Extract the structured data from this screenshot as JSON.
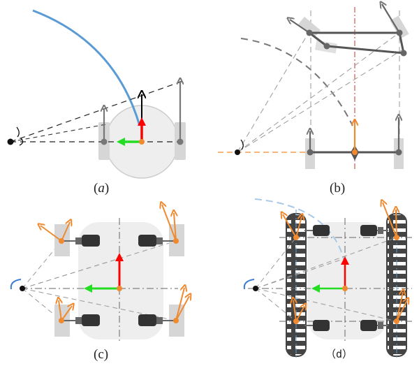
{
  "panels": [
    {
      "id": "a",
      "caption": "(a)",
      "italic_letter": "a"
    },
    {
      "id": "b",
      "caption": "(b)"
    },
    {
      "id": "c",
      "caption": "(c)"
    },
    {
      "id": "d",
      "caption": "（d）"
    }
  ],
  "colors": {
    "trajectory": "#5b9bd5",
    "velocity_arrow": "#ff0000",
    "lateral_arrow": "#22dd22",
    "wheel_arrow": "#f08a30",
    "wheel_body": "#d8d8d8",
    "chassis": "#eeeeee",
    "motor": "#333333",
    "track": "#444444",
    "guide_line": "#666666",
    "centerline_b": "#c0392b",
    "dashed_orange": "#f08a30",
    "light_blue_arc": "#a8c8e8"
  }
}
